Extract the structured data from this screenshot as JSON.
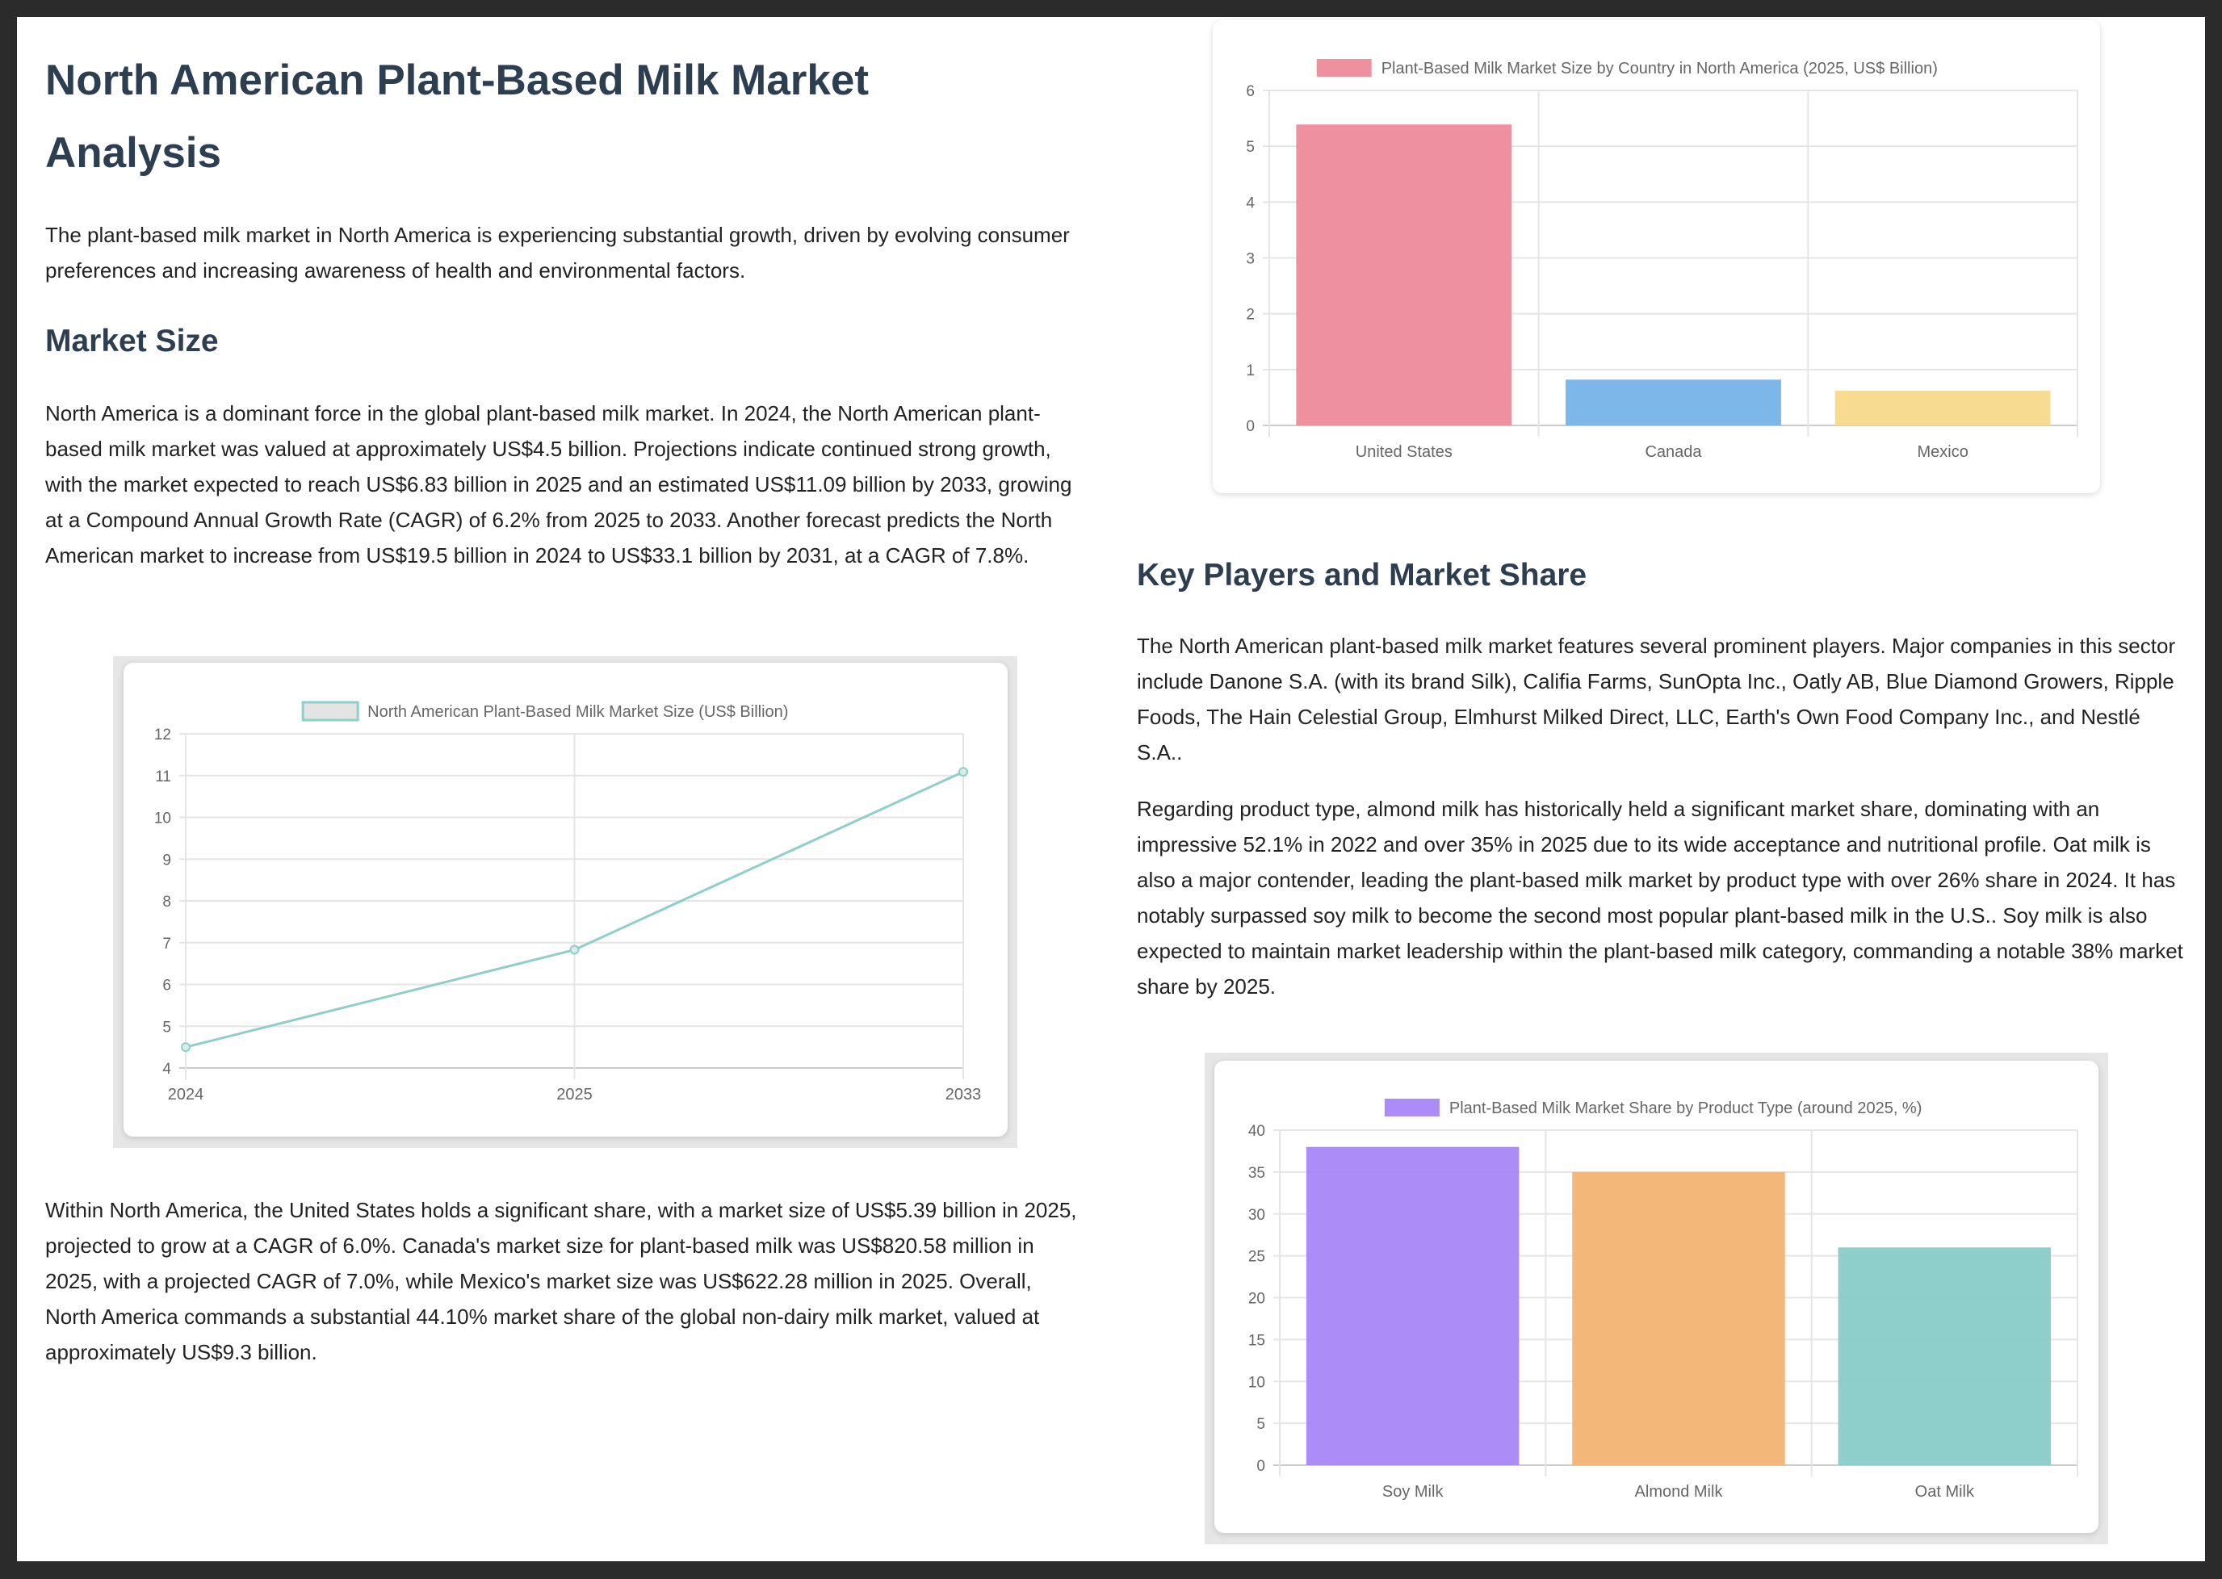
{
  "left": {
    "title": "North American Plant-Based Milk Market Analysis",
    "intro": "The plant-based milk market in North America is experiencing substantial growth, driven by evolving consumer preferences and increasing awareness of health and environmental factors.",
    "market_size_heading": "Market Size",
    "market_size_p1": "North America is a dominant force in the global plant-based milk market. In 2024, the North American plant-based milk market was valued at approximately US$4.5 billion. Projections indicate continued strong growth, with the market expected to reach US$6.83 billion in 2025 and an estimated US$11.09 billion by 2033, growing at a Compound Annual Growth Rate (CAGR) of 6.2% from 2025 to 2033. Another forecast predicts the North American market to increase from US$19.5 billion in 2024 to US$33.1 billion by 2031, at a CAGR of 7.8%.",
    "market_size_p2": "Within North America, the United States holds a significant share, with a market size of US$5.39 billion in 2025, projected to grow at a CAGR of 6.0%. Canada's market size for plant-based milk was US$820.58 million in 2025, with a projected CAGR of 7.0%, while Mexico's market size was US$622.28 million in 2025. Overall, North America commands a substantial 44.10% market share of the global non-dairy milk market, valued at approximately US$9.3 billion."
  },
  "right": {
    "key_players_heading": "Key Players and Market Share",
    "key_players_p1": "The North American plant-based milk market features several prominent players. Major companies in this sector include Danone S.A. (with its brand Silk), Califia Farms, SunOpta Inc., Oatly AB, Blue Diamond Growers, Ripple Foods, The Hain Celestial Group, Elmhurst Milked Direct, LLC, Earth's Own Food Company Inc., and Nestlé S.A..",
    "key_players_p2": "Regarding product type, almond milk has historically held a significant market share, dominating with an impressive 52.1% in 2022 and over 35% in 2025 due to its wide acceptance and nutritional profile. Oat milk is also a major contender, leading the plant-based milk market by product type with over 26% share in 2024. It has notably surpassed soy milk to become the second most popular plant-based milk in the U.S.. Soy milk is also expected to maintain market leadership within the plant-based milk category, commanding a notable 38% market share by 2025."
  },
  "chart_data": [
    {
      "id": "market-size-line",
      "type": "line",
      "legend": "North American Plant-Based Milk Market Size (US$ Billion)",
      "categories": [
        "2024",
        "2025",
        "2033"
      ],
      "values": [
        4.5,
        6.83,
        11.09
      ],
      "ylim": [
        4,
        12
      ],
      "yticks": [
        4,
        5,
        6,
        7,
        8,
        9,
        10,
        11,
        12
      ],
      "color": "#8fcfc9",
      "legend_fill": "#e4e4e4",
      "grid": true,
      "legend_position": "top"
    },
    {
      "id": "country-bar",
      "type": "bar",
      "legend": "Plant-Based Milk Market Size by Country in North America (2025, US$ Billion)",
      "categories": [
        "United States",
        "Canada",
        "Mexico"
      ],
      "values": [
        5.39,
        0.82,
        0.62
      ],
      "colors": [
        "#ee8a9c",
        "#76b3e8",
        "#f7d98a"
      ],
      "ylim": [
        0,
        6
      ],
      "yticks": [
        0,
        1,
        2,
        3,
        4,
        5,
        6
      ],
      "grid": true,
      "legend_position": "top"
    },
    {
      "id": "product-bar",
      "type": "bar",
      "legend": "Plant-Based Milk Market Share by Product Type (around 2025, %)",
      "categories": [
        "Soy Milk",
        "Almond Milk",
        "Oat Milk"
      ],
      "values": [
        38,
        35,
        26
      ],
      "colors": [
        "#a886f5",
        "#f2b472",
        "#88ccc8"
      ],
      "ylim": [
        0,
        40
      ],
      "yticks": [
        0,
        5,
        10,
        15,
        20,
        25,
        30,
        35,
        40
      ],
      "grid": true,
      "legend_position": "top"
    }
  ]
}
